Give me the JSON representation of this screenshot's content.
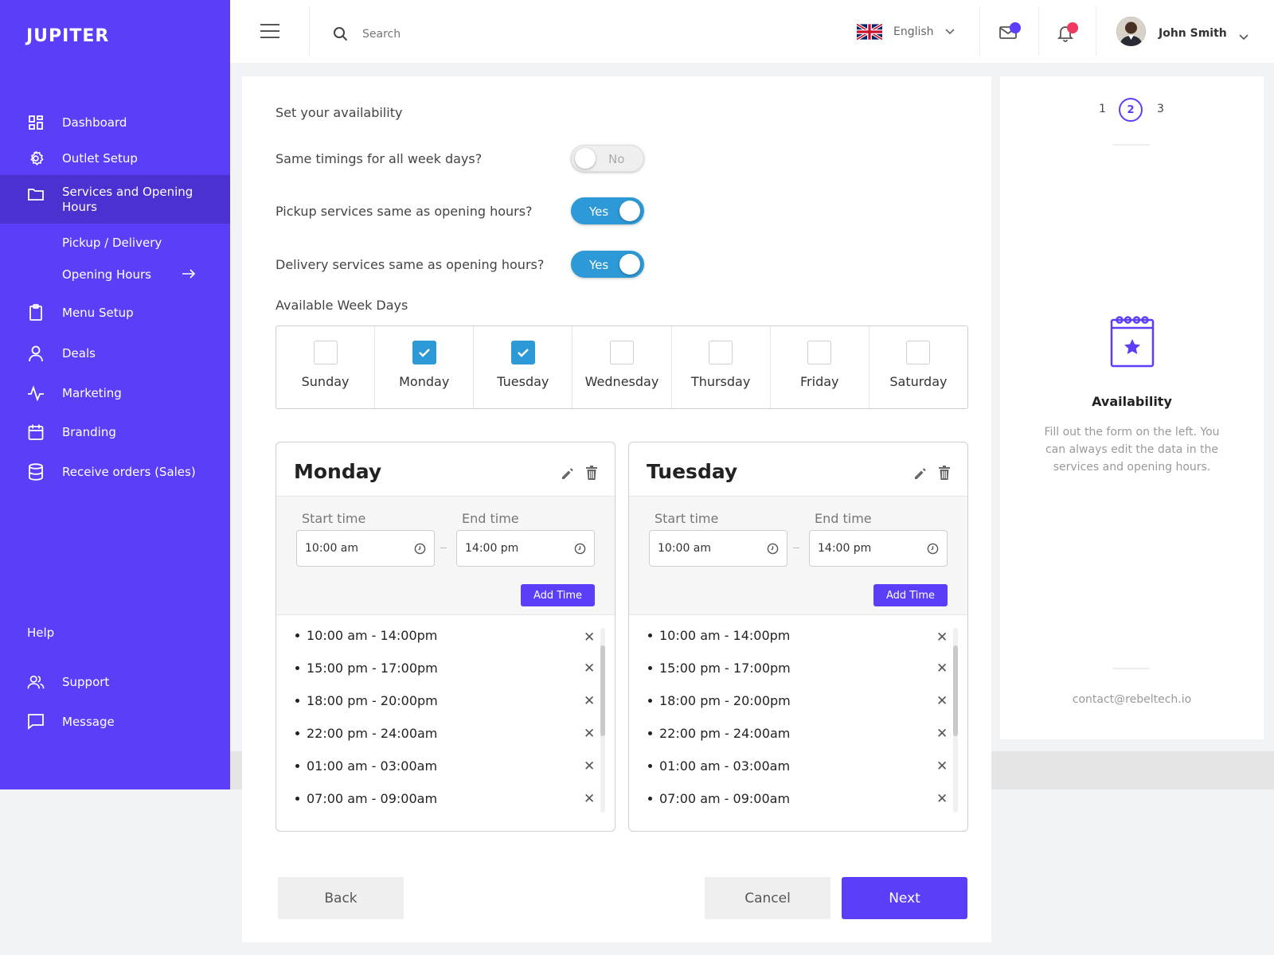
{
  "app": {
    "logo": "JUPITER"
  },
  "sidebar": {
    "items": [
      {
        "label": "Dashboard"
      },
      {
        "label": "Outlet Setup"
      },
      {
        "label": "Services and Opening Hours"
      },
      {
        "label": "Menu Setup"
      },
      {
        "label": "Deals"
      },
      {
        "label": "Marketing"
      },
      {
        "label": "Branding"
      },
      {
        "label": "Receive orders (Sales)"
      }
    ],
    "subitems": [
      {
        "label": "Pickup / Delivery"
      },
      {
        "label": "Opening Hours"
      }
    ],
    "help_label": "Help",
    "help_items": [
      {
        "label": "Support"
      },
      {
        "label": "Message"
      }
    ]
  },
  "header": {
    "search_placeholder": "Search",
    "language": "English",
    "username": "John Smith"
  },
  "form": {
    "section_title": "Set your availability",
    "questions": [
      {
        "label": "Same timings for all week days?",
        "toggle_text": "No",
        "on": false
      },
      {
        "label": "Pickup services same as opening hours?",
        "toggle_text": "Yes",
        "on": true
      },
      {
        "label": "Delivery services same as opening hours?",
        "toggle_text": "Yes",
        "on": true
      }
    ],
    "weekdays_title": "Available Week Days",
    "weekdays": [
      {
        "name": "Sunday",
        "checked": false
      },
      {
        "name": "Monday",
        "checked": true
      },
      {
        "name": "Tuesday",
        "checked": true
      },
      {
        "name": "Wednesday",
        "checked": false
      },
      {
        "name": "Thursday",
        "checked": false
      },
      {
        "name": "Friday",
        "checked": false
      },
      {
        "name": "Saturday",
        "checked": false
      }
    ]
  },
  "panels": [
    {
      "day": "Monday",
      "start_label": "Start time",
      "end_label": "End time",
      "start_value": "10:00 am",
      "end_value": "14:00 pm",
      "add_label": "Add Time",
      "slots": [
        "10:00 am - 14:00pm",
        "15:00 pm - 17:00pm",
        "18:00 pm - 20:00pm",
        "22:00 pm - 24:00am",
        "01:00 am - 03:00am",
        "07:00 am - 09:00am"
      ]
    },
    {
      "day": "Tuesday",
      "start_label": "Start time",
      "end_label": "End time",
      "start_value": "10:00 am",
      "end_value": "14:00 pm",
      "add_label": "Add Time",
      "slots": [
        "10:00 am - 14:00pm",
        "15:00 pm - 17:00pm",
        "18:00 pm - 20:00pm",
        "22:00 pm - 24:00am",
        "01:00 am - 03:00am",
        "07:00 am - 09:00am"
      ]
    }
  ],
  "actions": {
    "back": "Back",
    "cancel": "Cancel",
    "next": "Next"
  },
  "steps": {
    "items": [
      "1",
      "2",
      "3"
    ],
    "active": "2"
  },
  "info": {
    "title": "Availability",
    "description": "Fill out the form on the left. You can always edit the data in the services and opening hours.",
    "email": "contact@rebeltech.io"
  },
  "colors": {
    "accent": "#5b3ff8",
    "toggle_on": "#2d99d6",
    "dot_alert": "#ef3960"
  }
}
